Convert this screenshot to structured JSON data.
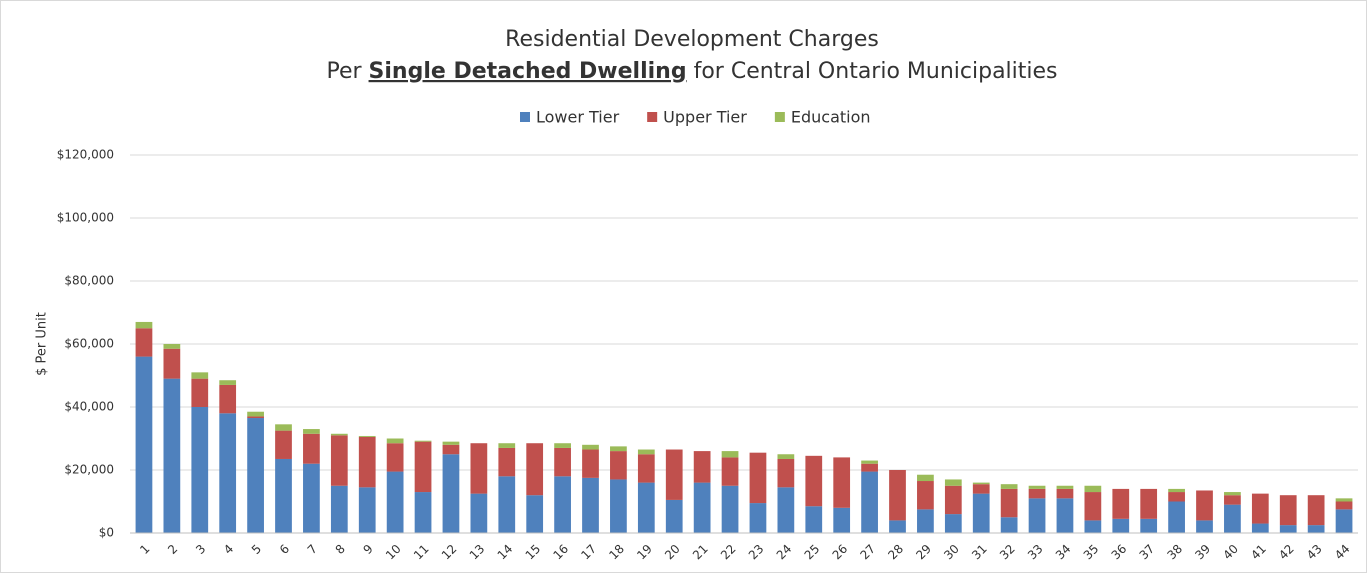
{
  "chart_data": {
    "type": "stacked_bar",
    "title": "Residential Development Charges",
    "subtitle_parts": [
      "Per",
      "Single Detached Dwelling",
      "for Central Ontario Municipalities"
    ],
    "y_label": "$ Per Unit",
    "categories": [
      "1",
      "2",
      "3",
      "4",
      "5",
      "6",
      "7",
      "8",
      "9",
      "10",
      "11",
      "12",
      "13",
      "14",
      "15",
      "16",
      "17",
      "18",
      "19",
      "20",
      "21",
      "22",
      "23",
      "24",
      "25",
      "26",
      "27",
      "28",
      "29",
      "30",
      "31",
      "32",
      "33",
      "34",
      "35",
      "36",
      "37",
      "38",
      "39",
      "40",
      "41",
      "42",
      "43",
      "44"
    ],
    "series": [
      {
        "name": "Lower Tier",
        "color": "#4f81bd",
        "values": [
          56000,
          49000,
          40000,
          38000,
          36500,
          23500,
          22000,
          15000,
          14500,
          19500,
          13000,
          25000,
          12500,
          18000,
          12000,
          18000,
          17500,
          17000,
          16000,
          10500,
          16000,
          15000,
          9500,
          14500,
          8500,
          8000,
          19500,
          4000,
          7500,
          6000,
          12500,
          5000,
          11000,
          11000,
          4000,
          4500,
          4500,
          10000,
          4000,
          9000,
          3000,
          2500,
          2500,
          7500
        ]
      },
      {
        "name": "Upper Tier",
        "color": "#c0504d",
        "values": [
          9000,
          9500,
          9000,
          9000,
          500,
          9000,
          9500,
          16000,
          16000,
          9000,
          16000,
          3000,
          16000,
          9000,
          16500,
          9000,
          9000,
          9000,
          9000,
          16000,
          10000,
          9000,
          16000,
          9000,
          16000,
          16000,
          2500,
          16000,
          9000,
          9000,
          3000,
          9000,
          3000,
          3000,
          9000,
          9500,
          9500,
          3000,
          9500,
          3000,
          9500,
          9500,
          9500,
          2500
        ]
      },
      {
        "name": "Education",
        "color": "#9bbb59",
        "values": [
          2000,
          1500,
          2000,
          1500,
          1500,
          2000,
          1500,
          500,
          300,
          1500,
          300,
          1000,
          0,
          1500,
          0,
          1500,
          1500,
          1500,
          1500,
          0,
          0,
          2000,
          0,
          1500,
          0,
          0,
          1000,
          0,
          2000,
          2000,
          500,
          1500,
          1000,
          1000,
          2000,
          0,
          0,
          1000,
          0,
          1000,
          0,
          0,
          0,
          1000
        ]
      }
    ],
    "ylim": [
      0,
      120000
    ],
    "yticks": [
      {
        "value": 0,
        "label": "$0"
      },
      {
        "value": 20000,
        "label": "$20,000"
      },
      {
        "value": 40000,
        "label": "$40,000"
      },
      {
        "value": 60000,
        "label": "$60,000"
      },
      {
        "value": 80000,
        "label": "$80,000"
      },
      {
        "value": 100000,
        "label": "$100,000"
      },
      {
        "value": 120000,
        "label": "$120,000"
      }
    ],
    "grid": true
  }
}
